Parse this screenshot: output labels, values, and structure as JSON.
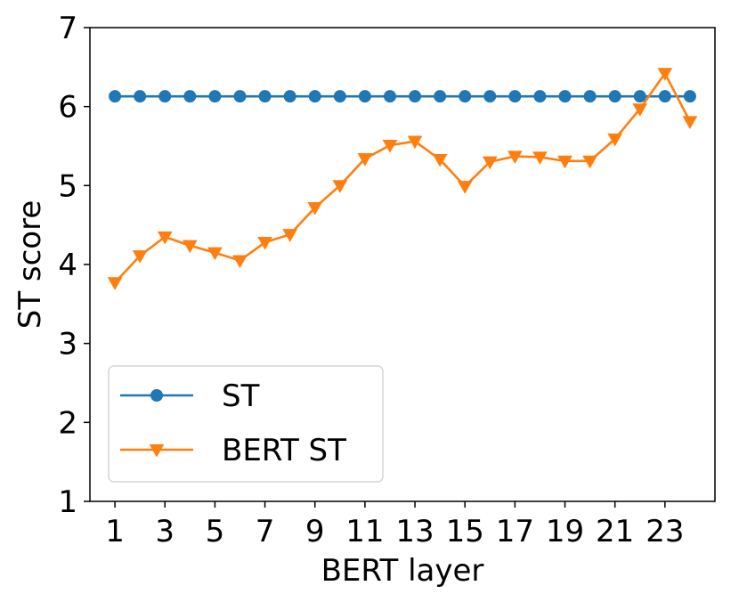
{
  "chart_data": {
    "type": "line",
    "xlabel": "BERT layer",
    "ylabel": "ST score",
    "xlim": [
      0,
      25
    ],
    "ylim": [
      1,
      7
    ],
    "xticks": [
      1,
      3,
      5,
      7,
      9,
      11,
      13,
      15,
      17,
      19,
      21,
      23
    ],
    "yticks": [
      1,
      2,
      3,
      4,
      5,
      6,
      7
    ],
    "grid": false,
    "legend": "lower-left",
    "x": [
      1,
      2,
      3,
      4,
      5,
      6,
      7,
      8,
      9,
      10,
      11,
      12,
      13,
      14,
      15,
      16,
      17,
      18,
      19,
      20,
      21,
      22,
      23,
      24
    ],
    "series": [
      {
        "name": "ST",
        "color": "#1f77b4",
        "marker": "circle",
        "values": [
          6.13,
          6.13,
          6.13,
          6.13,
          6.13,
          6.13,
          6.13,
          6.13,
          6.13,
          6.13,
          6.13,
          6.13,
          6.13,
          6.13,
          6.13,
          6.13,
          6.13,
          6.13,
          6.13,
          6.13,
          6.13,
          6.13,
          6.13,
          6.13
        ]
      },
      {
        "name": "BERT ST",
        "color": "#ff7f0e",
        "marker": "triangle-down",
        "values": [
          3.77,
          4.11,
          4.35,
          4.24,
          4.15,
          4.05,
          4.28,
          4.38,
          4.72,
          5.0,
          5.34,
          5.51,
          5.56,
          5.33,
          4.99,
          5.3,
          5.37,
          5.36,
          5.31,
          5.31,
          5.59,
          5.97,
          6.42,
          5.81
        ]
      }
    ]
  }
}
